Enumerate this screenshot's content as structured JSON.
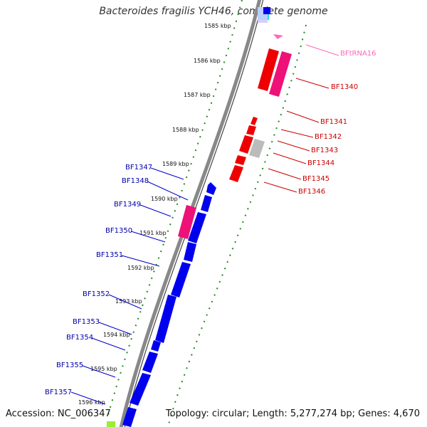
{
  "title": "Bacteroides fragilis YCH46, complete genome",
  "accession": "Accession: NC_006347",
  "summary": "Topology: circular; Length: 5,277,274 bp; Genes: 4,670",
  "colors": {
    "forward_gene": "#0000ee",
    "reverse_gene": "#ee0000",
    "pseudo_gene": "#ee1177",
    "other_gene": "#bbbbbb",
    "trna": "#ff66bb",
    "backbone": "#888888",
    "tick": "#228822"
  },
  "kbp_ticks": [
    "1585 kbp",
    "1586 kbp",
    "1587 kbp",
    "1588 kbp",
    "1589 kbp",
    "1590 kbp",
    "1591 kbp",
    "1592 kbp",
    "1593 kbp",
    "1594 kbp",
    "1595 kbp",
    "1596 kbp"
  ],
  "left_labels": [
    "BF1347",
    "BF1348",
    "BF1349",
    "BF1350",
    "BF1351",
    "BF1352",
    "BF1353",
    "BF1354",
    "BF1355",
    "BF1357"
  ],
  "right_labels": [
    "BFtRNA16",
    "BF1340",
    "BF1341",
    "BF1342",
    "BF1343",
    "BF1344",
    "BF1345",
    "BF1346"
  ]
}
